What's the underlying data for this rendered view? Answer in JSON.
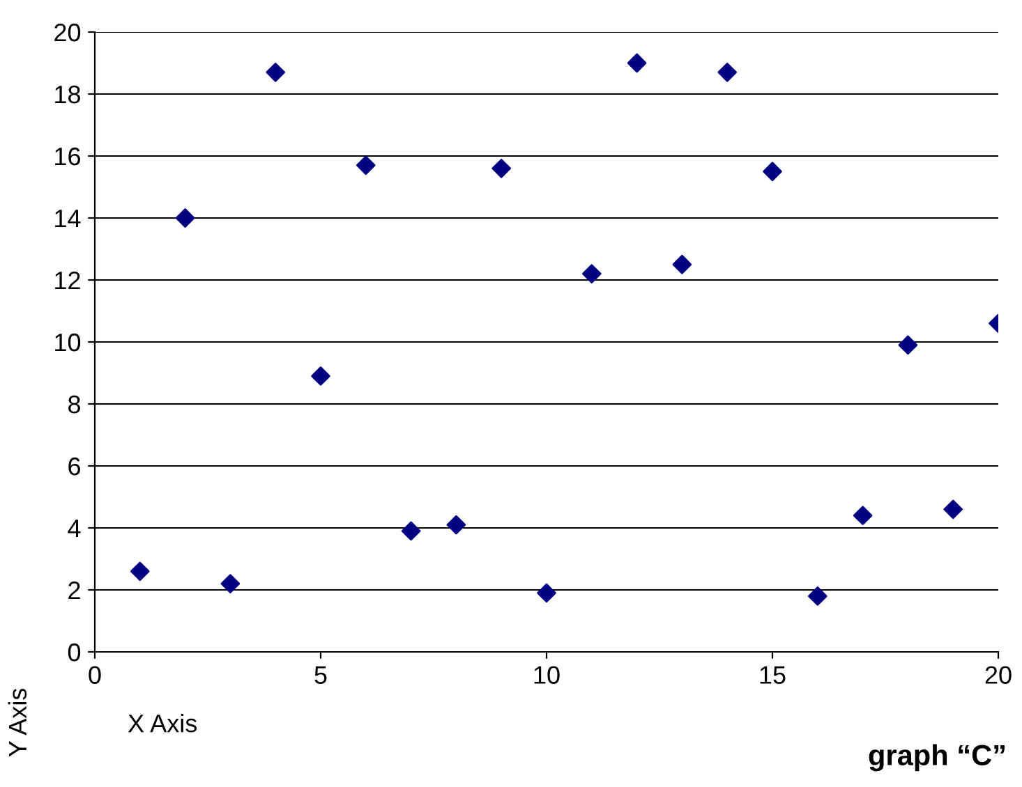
{
  "chart_data": {
    "type": "scatter",
    "xlabel": "X Axis",
    "ylabel": "Y Axis",
    "annotations": [
      "graph “C”"
    ],
    "x": [
      1,
      2,
      3,
      4,
      5,
      6,
      7,
      8,
      9,
      10,
      11,
      12,
      13,
      14,
      15,
      16,
      17,
      18,
      19,
      20
    ],
    "series": [
      {
        "color": "#000080",
        "values": [
          2.6,
          14.0,
          2.2,
          18.7,
          8.9,
          15.7,
          3.9,
          4.1,
          15.6,
          1.9,
          12.2,
          19.0,
          12.5,
          18.7,
          15.5,
          1.8,
          4.4,
          9.9,
          4.6,
          10.6
        ]
      }
    ],
    "xlim": [
      0,
      20
    ],
    "xticks": [
      0,
      5,
      10,
      15,
      20
    ],
    "ylim": [
      0,
      20
    ],
    "yticks": [
      0,
      2,
      4,
      6,
      8,
      10,
      12,
      14,
      16,
      18,
      20
    ],
    "grid": "y",
    "marker": "diamond",
    "legend": false
  }
}
